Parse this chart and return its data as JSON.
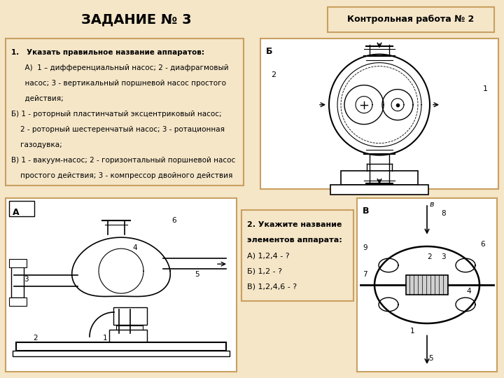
{
  "bg_color": "#f5e6c8",
  "title": "ЗАДАНИЕ № 3",
  "header_box_text": "Контрольная работа № 2",
  "box_color": "#c8a060",
  "text_color": "#000000",
  "text_box1_lines": [
    [
      "bold",
      "1.   Указать правильное название аппаратов:"
    ],
    [
      "normal",
      "      А)  1 – дифференциальный насос; 2 - диафрагмовый"
    ],
    [
      "normal",
      "      насос; 3 - вертикальный поршневой насос простого"
    ],
    [
      "normal",
      "      действия;"
    ],
    [
      "normal",
      "Б) 1 - роторный пластинчатый эксцентриковый насос;"
    ],
    [
      "normal",
      "    2 - роторный шестеренчатый насос; 3 - ротационная"
    ],
    [
      "normal",
      "    газодувка;"
    ],
    [
      "normal",
      "В) 1 - вакуум-насос; 2 - горизонтальный поршневой насос"
    ],
    [
      "normal",
      "    простого действия; 3 - компрессор двойного действия"
    ]
  ],
  "text_box2_lines": [
    [
      "bold",
      "2. Укажите название"
    ],
    [
      "bold",
      "элементов аппарата:"
    ],
    [
      "normal",
      "А) 1,2,4 - ?"
    ],
    [
      "normal",
      "Б) 1,2 - ?"
    ],
    [
      "normal",
      "В) 1,2,4,6 - ?"
    ]
  ]
}
